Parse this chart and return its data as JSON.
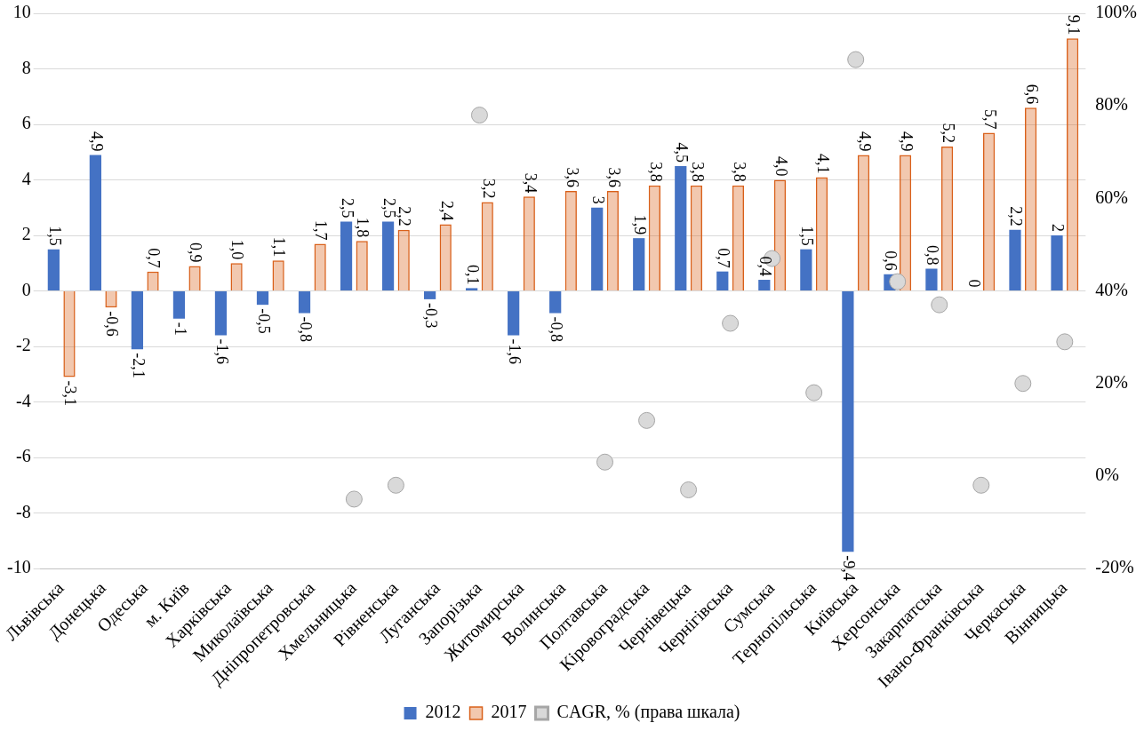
{
  "chart_data": {
    "type": "bar",
    "categories": [
      "Львівська",
      "Донецька",
      "Одеська",
      "м. Київ",
      "Харківська",
      "Миколаївська",
      "Дніпропетровська",
      "Хмельницька",
      "Рівненська",
      "Луганська",
      "Запорізька",
      "Житомирська",
      "Волинська",
      "Полтавська",
      "Кіровоградська",
      "Чернівецька",
      "Чернігівська",
      "Сумська",
      "Тернопільська",
      "Київська",
      "Херсонська",
      "Закарпатська",
      "Івано-Франківська",
      "Черкаська",
      "Вінницька"
    ],
    "series": [
      {
        "name": "2012",
        "color": "#4472c4",
        "values": [
          1.5,
          4.9,
          -2.1,
          -1,
          -1.6,
          -0.5,
          -0.8,
          2.5,
          2.5,
          -0.3,
          0.1,
          -1.6,
          -0.8,
          3,
          1.9,
          4.5,
          0.7,
          0.4,
          1.5,
          -9.4,
          0.6,
          0.8,
          0,
          2.2,
          2
        ],
        "value_labels": [
          "1,5",
          "4,9",
          "-2,1",
          "-1",
          "-1,6",
          "-0,5",
          "-0,8",
          "2,5",
          "2,5",
          "-0,3",
          "0,1",
          "-1,6",
          "-0,8",
          "3",
          "1,9",
          "4,5",
          "0,7",
          "0,4",
          "1,5",
          "-9,4",
          "0,6",
          "0,8",
          "0",
          "2,2",
          "2"
        ]
      },
      {
        "name": "2017",
        "color": "#d9601a",
        "values": [
          -3.1,
          -0.6,
          0.7,
          0.9,
          1.0,
          1.1,
          1.7,
          1.8,
          2.2,
          2.4,
          3.2,
          3.4,
          3.6,
          3.6,
          3.8,
          3.8,
          3.8,
          4.0,
          4.1,
          4.9,
          4.9,
          5.2,
          5.7,
          6.6,
          9.1
        ],
        "value_labels": [
          "-3,1",
          "-0,6",
          "0,7",
          "0,9",
          "1,0",
          "1,1",
          "1,7",
          "1,8",
          "2,2",
          "2,4",
          "3,2",
          "3,4",
          "3,6",
          "3,6",
          "3,8",
          "3,8",
          "3,8",
          "4,0",
          "4,1",
          "4,9",
          "4,9",
          "5,2",
          "5,7",
          "6,6",
          "9,1"
        ]
      },
      {
        "name": "CAGR, % (права шкала)",
        "type": "scatter",
        "axis": "y2",
        "color": "#d9d9d9",
        "values": [
          null,
          null,
          null,
          null,
          null,
          null,
          null,
          -5,
          -2,
          null,
          78,
          null,
          null,
          3,
          12,
          -3,
          33,
          47,
          18,
          90,
          42,
          37,
          -2,
          20,
          29
        ]
      }
    ],
    "ylim": [
      -10,
      10
    ],
    "yticks": [
      -10,
      -8,
      -6,
      -4,
      -2,
      0,
      2,
      4,
      6,
      8,
      10
    ],
    "y2lim": [
      -20,
      100
    ],
    "y2ticks": [
      {
        "value": -20,
        "label": "-20%"
      },
      {
        "value": 0,
        "label": "0%"
      },
      {
        "value": 20,
        "label": "20%"
      },
      {
        "value": 40,
        "label": "40%"
      },
      {
        "value": 60,
        "label": "60%"
      },
      {
        "value": 80,
        "label": "80%"
      },
      {
        "value": 100,
        "label": "100%"
      }
    ],
    "grid": "y",
    "legend": "bottom",
    "marker": "circle"
  }
}
